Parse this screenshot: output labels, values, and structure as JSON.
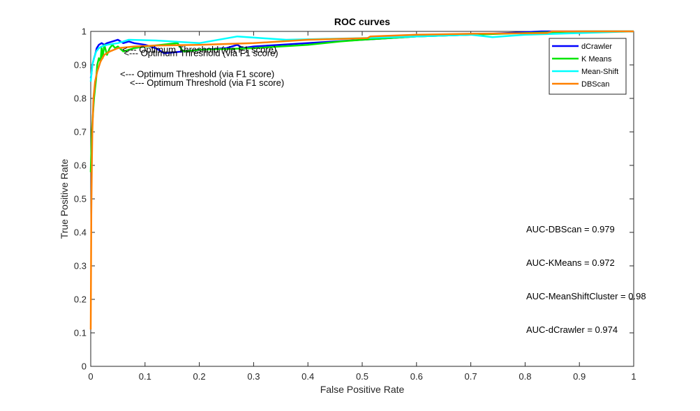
{
  "chart_data": {
    "type": "line",
    "title": "ROC curves",
    "xlabel": "False Positive Rate",
    "ylabel": "True Positive Rate",
    "xlim": [
      0,
      1
    ],
    "ylim": [
      0,
      1
    ],
    "xticks": [
      "0",
      "0.1",
      "0.2",
      "0.3",
      "0.4",
      "0.5",
      "0.6",
      "0.7",
      "0.8",
      "0.9",
      "1"
    ],
    "yticks": [
      "0",
      "0.1",
      "0.2",
      "0.3",
      "0.4",
      "0.5",
      "0.6",
      "0.7",
      "0.8",
      "0.9",
      "1"
    ],
    "grid": false,
    "legend_position": "top-right",
    "series": [
      {
        "name": "dCrawler",
        "color": "#0000ff",
        "x": [
          0,
          0.001,
          0.003,
          0.006,
          0.008,
          0.011,
          0.015,
          0.02,
          0.025,
          0.03,
          0.04,
          0.05,
          0.06,
          0.07,
          0.08,
          0.1,
          0.12,
          0.135,
          0.17,
          0.2,
          0.25,
          0.27,
          0.28,
          0.3,
          0.4,
          0.5,
          0.6,
          0.7,
          0.83,
          0.9,
          1.0
        ],
        "y": [
          0.86,
          0.87,
          0.9,
          0.92,
          0.93,
          0.95,
          0.96,
          0.965,
          0.96,
          0.965,
          0.97,
          0.975,
          0.965,
          0.97,
          0.965,
          0.96,
          0.95,
          0.935,
          0.94,
          0.945,
          0.95,
          0.96,
          0.95,
          0.955,
          0.965,
          0.975,
          0.985,
          0.99,
          1.0,
          1.0,
          1.0
        ]
      },
      {
        "name": "K Means",
        "color": "#00e600",
        "x": [
          0,
          0.002,
          0.004,
          0.006,
          0.008,
          0.01,
          0.012,
          0.015,
          0.018,
          0.02,
          0.022,
          0.025,
          0.03,
          0.035,
          0.04,
          0.045,
          0.05,
          0.06,
          0.08,
          0.1,
          0.13,
          0.16,
          0.17,
          0.2,
          0.3,
          0.4,
          0.46,
          0.5,
          0.6,
          0.7,
          0.8,
          0.9,
          1.0
        ],
        "y": [
          0.58,
          0.7,
          0.75,
          0.8,
          0.83,
          0.86,
          0.9,
          0.92,
          0.91,
          0.95,
          0.92,
          0.96,
          0.93,
          0.95,
          0.96,
          0.95,
          0.955,
          0.94,
          0.95,
          0.955,
          0.96,
          0.965,
          0.94,
          0.945,
          0.95,
          0.96,
          0.97,
          0.975,
          0.985,
          0.99,
          0.995,
          1.0,
          1.0
        ]
      },
      {
        "name": "Mean-Shift",
        "color": "#00ffff",
        "x": [
          0,
          0.003,
          0.006,
          0.01,
          0.015,
          0.02,
          0.03,
          0.05,
          0.07,
          0.12,
          0.2,
          0.27,
          0.36,
          0.5,
          0.6,
          0.7,
          0.74,
          0.8,
          0.9,
          1.0
        ],
        "y": [
          0.85,
          0.9,
          0.92,
          0.94,
          0.95,
          0.955,
          0.96,
          0.965,
          0.975,
          0.973,
          0.965,
          0.985,
          0.975,
          0.98,
          0.985,
          0.99,
          0.983,
          0.99,
          0.995,
          1.0
        ]
      },
      {
        "name": "DBScan",
        "color": "#ff8000",
        "x": [
          0,
          0.001,
          0.002,
          0.003,
          0.005,
          0.008,
          0.012,
          0.018,
          0.025,
          0.035,
          0.05,
          0.08,
          0.12,
          0.2,
          0.3,
          0.4,
          0.51,
          0.515,
          0.6,
          0.7,
          0.84,
          0.85,
          1.0
        ],
        "y": [
          0.11,
          0.45,
          0.6,
          0.7,
          0.8,
          0.85,
          0.88,
          0.91,
          0.93,
          0.94,
          0.95,
          0.955,
          0.958,
          0.96,
          0.965,
          0.975,
          0.98,
          0.985,
          0.99,
          0.993,
          0.995,
          1.0,
          1.0
        ]
      }
    ],
    "annotations": [
      {
        "text": "<--- Optimum Threshold (via F1 score)",
        "x": 0.058,
        "y": 0.936
      },
      {
        "text": "<--- Optimum Threshold (via F1 score)",
        "x": 0.061,
        "y": 0.926
      },
      {
        "text": "<--- Optimum Threshold (via F1 score)",
        "x": 0.054,
        "y": 0.864
      },
      {
        "text": "<--- Optimum Threshold (via F1 score)",
        "x": 0.072,
        "y": 0.837
      },
      {
        "text": "AUC-DBScan = 0.979",
        "x": 0.802,
        "y": 0.4
      },
      {
        "text": "AUC-KMeans = 0.972",
        "x": 0.802,
        "y": 0.3
      },
      {
        "text": "AUC-MeanShiftCluster = 0.98",
        "x": 0.802,
        "y": 0.2
      },
      {
        "text": "AUC-dCrawler = 0.974",
        "x": 0.802,
        "y": 0.1
      }
    ]
  }
}
